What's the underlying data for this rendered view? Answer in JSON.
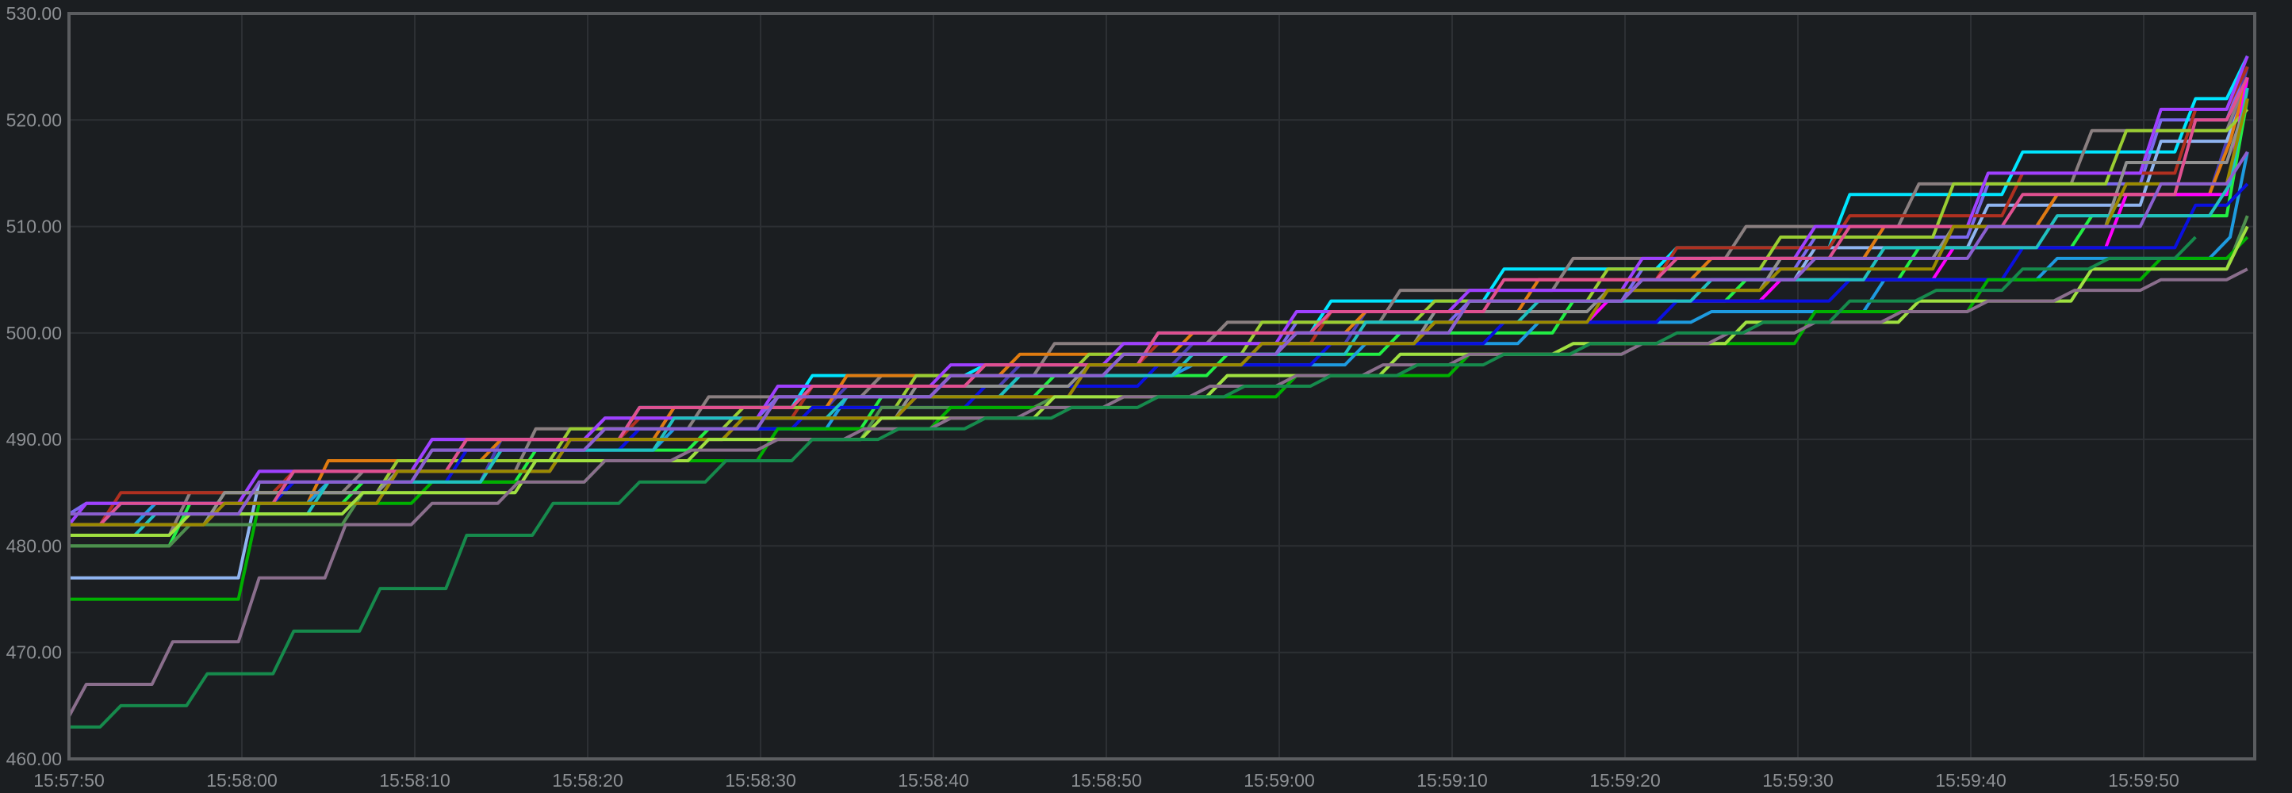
{
  "chart_data": {
    "type": "line",
    "title": "",
    "xlabel": "",
    "ylabel": "",
    "background": "#1b1e21",
    "grid": true,
    "legend": "none",
    "ylim": [
      460,
      530
    ],
    "xlim": [
      "15:57:50",
      "15:59:56"
    ],
    "y_ticks": [
      "460.00",
      "470.00",
      "480.00",
      "490.00",
      "500.00",
      "510.00",
      "520.00",
      "530.00"
    ],
    "x_ticks": [
      "15:57:50",
      "15:58:00",
      "15:58:10",
      "15:58:20",
      "15:58:30",
      "15:58:40",
      "15:58:50",
      "15:59:00",
      "15:59:10",
      "15:59:20",
      "15:59:30",
      "15:59:40",
      "15:59:50"
    ],
    "series": [
      {
        "color": "#7b68ee",
        "x": [
          "15:57:50",
          "15:57:51",
          "15:58:01",
          "15:58:11",
          "15:58:21",
          "15:58:31",
          "15:58:41",
          "15:58:51",
          "15:59:01",
          "15:59:11",
          "15:59:21",
          "15:59:31",
          "15:59:41",
          "15:59:51",
          "15:59:56"
        ],
        "y": [
          483,
          484,
          487,
          490,
          492,
          494,
          496,
          498,
          501,
          503,
          506,
          509,
          514,
          520,
          525
        ]
      },
      {
        "color": "#4a3fb5",
        "x": [
          "15:57:50",
          "15:57:55",
          "15:58:05",
          "15:58:15",
          "15:58:25",
          "15:58:35",
          "15:58:45",
          "15:58:55",
          "15:59:05",
          "15:59:15",
          "15:59:25",
          "15:59:35",
          "15:59:45",
          "15:59:55",
          "15:59:56"
        ],
        "y": [
          482,
          484,
          486,
          490,
          493,
          495,
          497,
          499,
          502,
          505,
          507,
          510,
          513,
          519,
          525
        ]
      },
      {
        "color": "#00e5ff",
        "x": [
          "15:57:50",
          "15:57:53",
          "15:58:03",
          "15:58:13",
          "15:58:23",
          "15:58:33",
          "15:58:43",
          "15:58:53",
          "15:59:03",
          "15:59:13",
          "15:59:23",
          "15:59:33",
          "15:59:43",
          "15:59:53",
          "15:59:56"
        ],
        "y": [
          482,
          484,
          487,
          490,
          493,
          496,
          497,
          500,
          503,
          506,
          508,
          513,
          517,
          522,
          526
        ]
      },
      {
        "color": "#8fb4f0",
        "x": [
          "15:57:50",
          "15:57:51",
          "15:58:01",
          "15:58:11",
          "15:58:21",
          "15:58:31",
          "15:58:41",
          "15:58:51",
          "15:59:01",
          "15:59:11",
          "15:59:21",
          "15:59:31",
          "15:59:41",
          "15:59:51",
          "15:59:56"
        ],
        "y": [
          477,
          477,
          486,
          489,
          491,
          494,
          496,
          498,
          500,
          503,
          505,
          508,
          512,
          518,
          523
        ]
      },
      {
        "color": "#8a7f80",
        "x": [
          "15:57:50",
          "15:57:57",
          "15:58:07",
          "15:58:17",
          "15:58:27",
          "15:58:37",
          "15:58:47",
          "15:58:57",
          "15:59:07",
          "15:59:17",
          "15:59:27",
          "15:59:37",
          "15:59:47",
          "15:59:56"
        ],
        "y": [
          481,
          485,
          487,
          491,
          494,
          496,
          499,
          501,
          504,
          507,
          510,
          514,
          519,
          524
        ]
      },
      {
        "color": "#b03020",
        "x": [
          "15:57:50",
          "15:57:53",
          "15:58:03",
          "15:58:13",
          "15:58:23",
          "15:58:33",
          "15:58:43",
          "15:58:53",
          "15:59:03",
          "15:59:13",
          "15:59:23",
          "15:59:33",
          "15:59:43",
          "15:59:53",
          "15:59:56"
        ],
        "y": [
          482,
          485,
          487,
          490,
          492,
          495,
          497,
          499,
          502,
          505,
          508,
          511,
          515,
          521,
          525
        ]
      },
      {
        "color": "#e07b10",
        "x": [
          "15:57:50",
          "15:57:55",
          "15:58:05",
          "15:58:15",
          "15:58:25",
          "15:58:35",
          "15:58:45",
          "15:58:55",
          "15:59:05",
          "15:59:15",
          "15:59:25",
          "15:59:35",
          "15:59:45",
          "15:59:55",
          "15:59:56"
        ],
        "y": [
          482,
          484,
          488,
          490,
          493,
          496,
          498,
          500,
          502,
          505,
          507,
          510,
          513,
          518,
          524
        ]
      },
      {
        "color": "#22ee44",
        "x": [
          "15:57:50",
          "15:57:57",
          "15:58:07",
          "15:58:17",
          "15:58:27",
          "15:58:37",
          "15:58:47",
          "15:58:57",
          "15:59:07",
          "15:59:17",
          "15:59:27",
          "15:59:37",
          "15:59:47",
          "15:59:56"
        ],
        "y": [
          480,
          484,
          486,
          489,
          491,
          494,
          496,
          498,
          500,
          503,
          505,
          508,
          511,
          522
        ]
      },
      {
        "color": "#9acd32",
        "x": [
          "15:57:50",
          "15:57:59",
          "15:58:09",
          "15:58:19",
          "15:58:29",
          "15:58:39",
          "15:58:49",
          "15:58:59",
          "15:59:09",
          "15:59:19",
          "15:59:29",
          "15:59:39",
          "15:59:49",
          "15:59:56"
        ],
        "y": [
          482,
          485,
          488,
          491,
          493,
          496,
          498,
          501,
          503,
          506,
          509,
          514,
          519,
          521
        ]
      },
      {
        "color": "#ff00ff",
        "x": [
          "15:57:50",
          "15:57:59",
          "15:58:09",
          "15:58:19",
          "15:58:29",
          "15:58:39",
          "15:58:49",
          "15:58:59",
          "15:59:09",
          "15:59:19",
          "15:59:29",
          "15:59:39",
          "15:59:49",
          "15:59:56"
        ],
        "y": [
          482,
          484,
          487,
          490,
          492,
          494,
          497,
          499,
          501,
          503,
          505,
          508,
          513,
          524
        ]
      },
      {
        "color": "#9f40ff",
        "x": [
          "15:57:50",
          "15:57:51",
          "15:58:01",
          "15:58:11",
          "15:58:21",
          "15:58:31",
          "15:58:41",
          "15:58:51",
          "15:59:01",
          "15:59:11",
          "15:59:21",
          "15:59:31",
          "15:59:41",
          "15:59:51",
          "15:59:56"
        ],
        "y": [
          482,
          484,
          487,
          490,
          492,
          495,
          497,
          499,
          502,
          504,
          507,
          510,
          515,
          521,
          526
        ]
      },
      {
        "color": "#1e9be0",
        "x": [
          "15:57:50",
          "15:57:55",
          "15:58:05",
          "15:58:15",
          "15:58:25",
          "15:58:35",
          "15:58:45",
          "15:58:55",
          "15:59:05",
          "15:59:15",
          "15:59:25",
          "15:59:35",
          "15:59:45",
          "15:59:55",
          "15:59:56"
        ],
        "y": [
          482,
          484,
          486,
          489,
          491,
          494,
          496,
          497,
          499,
          501,
          502,
          505,
          507,
          509,
          517
        ]
      },
      {
        "color": "#0a10e0",
        "x": [
          "15:57:50",
          "15:57:53",
          "15:58:03",
          "15:58:13",
          "15:58:23",
          "15:58:33",
          "15:58:43",
          "15:58:53",
          "15:59:03",
          "15:59:13",
          "15:59:23",
          "15:59:33",
          "15:59:43",
          "15:59:53",
          "15:59:56"
        ],
        "y": [
          482,
          484,
          486,
          489,
          491,
          493,
          495,
          497,
          499,
          501,
          503,
          505,
          508,
          512,
          514
        ]
      },
      {
        "color": "#909090",
        "x": [
          "15:57:50",
          "15:57:59",
          "15:58:09",
          "15:58:19",
          "15:58:29",
          "15:58:39",
          "15:58:49",
          "15:58:59",
          "15:59:09",
          "15:59:19",
          "15:59:29",
          "15:59:39",
          "15:59:49",
          "15:59:56"
        ],
        "y": [
          482,
          485,
          487,
          490,
          492,
          495,
          497,
          499,
          502,
          504,
          507,
          510,
          516,
          522
        ]
      },
      {
        "color": "#4e8f4e",
        "x": [
          "15:57:50",
          "15:57:57",
          "15:58:07",
          "15:58:17",
          "15:58:27",
          "15:58:37",
          "15:58:47",
          "15:58:57",
          "15:59:07",
          "15:59:17",
          "15:59:27",
          "15:59:37",
          "15:59:47",
          "15:59:56"
        ],
        "y": [
          480,
          482,
          485,
          488,
          490,
          493,
          494,
          496,
          498,
          499,
          501,
          503,
          506,
          511
        ]
      },
      {
        "color": "#00b000",
        "x": [
          "15:57:50",
          "15:57:51",
          "15:58:01",
          "15:58:11",
          "15:58:21",
          "15:58:31",
          "15:58:41",
          "15:58:51",
          "15:59:01",
          "15:59:11",
          "15:59:21",
          "15:59:31",
          "15:59:41",
          "15:59:51",
          "15:59:56"
        ],
        "y": [
          475,
          475,
          484,
          486,
          488,
          491,
          493,
          494,
          496,
          498,
          499,
          502,
          505,
          507,
          509
        ]
      },
      {
        "color": "#e05090",
        "x": [
          "15:57:50",
          "15:57:53",
          "15:58:03",
          "15:58:13",
          "15:58:23",
          "15:58:33",
          "15:58:43",
          "15:58:53",
          "15:59:03",
          "15:59:13",
          "15:59:23",
          "15:59:33",
          "15:59:43",
          "15:59:53",
          "15:59:56"
        ],
        "y": [
          482,
          484,
          487,
          490,
          493,
          495,
          497,
          500,
          502,
          505,
          507,
          510,
          513,
          520,
          524
        ]
      },
      {
        "color": "#20c0c0",
        "x": [
          "15:57:50",
          "15:57:55",
          "15:58:05",
          "15:58:15",
          "15:58:25",
          "15:58:35",
          "15:58:45",
          "15:58:55",
          "15:59:05",
          "15:59:15",
          "15:59:25",
          "15:59:35",
          "15:59:45",
          "15:59:55",
          "15:59:56"
        ],
        "y": [
          481,
          483,
          486,
          489,
          492,
          494,
          496,
          498,
          501,
          503,
          505,
          508,
          511,
          514,
          523
        ]
      },
      {
        "color": "#9a8a00",
        "x": [
          "15:57:50",
          "15:57:59",
          "15:58:09",
          "15:58:19",
          "15:58:29",
          "15:58:39",
          "15:58:49",
          "15:58:59",
          "15:59:09",
          "15:59:19",
          "15:59:29",
          "15:59:39",
          "15:59:49",
          "15:59:56"
        ],
        "y": [
          482,
          484,
          487,
          490,
          492,
          494,
          497,
          499,
          501,
          504,
          506,
          510,
          514,
          522
        ]
      },
      {
        "color": "#a0e040",
        "x": [
          "15:57:50",
          "15:57:57",
          "15:58:07",
          "15:58:17",
          "15:58:27",
          "15:58:37",
          "15:58:47",
          "15:58:57",
          "15:59:07",
          "15:59:17",
          "15:59:27",
          "15:59:37",
          "15:59:47",
          "15:59:56"
        ],
        "y": [
          481,
          483,
          485,
          488,
          490,
          492,
          494,
          496,
          498,
          499,
          501,
          503,
          506,
          510
        ]
      },
      {
        "color": "#8b5fd0",
        "x": [
          "15:57:50",
          "15:57:51",
          "15:58:01",
          "15:58:11",
          "15:58:21",
          "15:58:31",
          "15:58:41",
          "15:58:51",
          "15:59:01",
          "15:59:11",
          "15:59:21",
          "15:59:31",
          "15:59:41",
          "15:59:51",
          "15:59:56"
        ],
        "y": [
          483,
          483,
          486,
          489,
          491,
          494,
          496,
          498,
          500,
          503,
          505,
          507,
          510,
          514,
          517
        ]
      },
      {
        "color": "#8a6e8c",
        "x": [
          "15:57:50",
          "15:57:51",
          "15:57:56",
          "15:58:01",
          "15:58:06",
          "15:58:11",
          "15:58:16",
          "15:58:21",
          "15:58:26",
          "15:58:31",
          "15:58:36",
          "15:58:41",
          "15:58:46",
          "15:58:51",
          "15:58:56",
          "15:59:01",
          "15:59:06",
          "15:59:11",
          "15:59:21",
          "15:59:26",
          "15:59:31",
          "15:59:36",
          "15:59:41",
          "15:59:46",
          "15:59:51",
          "15:59:56"
        ],
        "y": [
          464,
          467,
          471,
          477,
          482,
          484,
          486,
          488,
          489,
          490,
          491,
          492,
          493,
          494,
          495,
          496,
          497,
          498,
          499,
          500,
          501,
          502,
          503,
          504,
          505,
          506
        ]
      },
      {
        "color": "#168a4c",
        "x": [
          "15:57:50",
          "15:57:53",
          "15:57:58",
          "15:58:03",
          "15:58:08",
          "15:58:13",
          "15:58:18",
          "15:58:23",
          "15:58:28",
          "15:58:33",
          "15:58:38",
          "15:58:43",
          "15:58:48",
          "15:58:53",
          "15:58:58",
          "15:59:03",
          "15:59:08",
          "15:59:13",
          "15:59:18",
          "15:59:23",
          "15:59:28",
          "15:59:33",
          "15:59:38",
          "15:59:43",
          "15:59:48",
          "15:59:53"
        ],
        "y": [
          463,
          465,
          468,
          472,
          476,
          481,
          484,
          486,
          488,
          490,
          491,
          492,
          493,
          494,
          495,
          496,
          497,
          498,
          499,
          500,
          501,
          503,
          504,
          506,
          507,
          509
        ]
      }
    ]
  }
}
